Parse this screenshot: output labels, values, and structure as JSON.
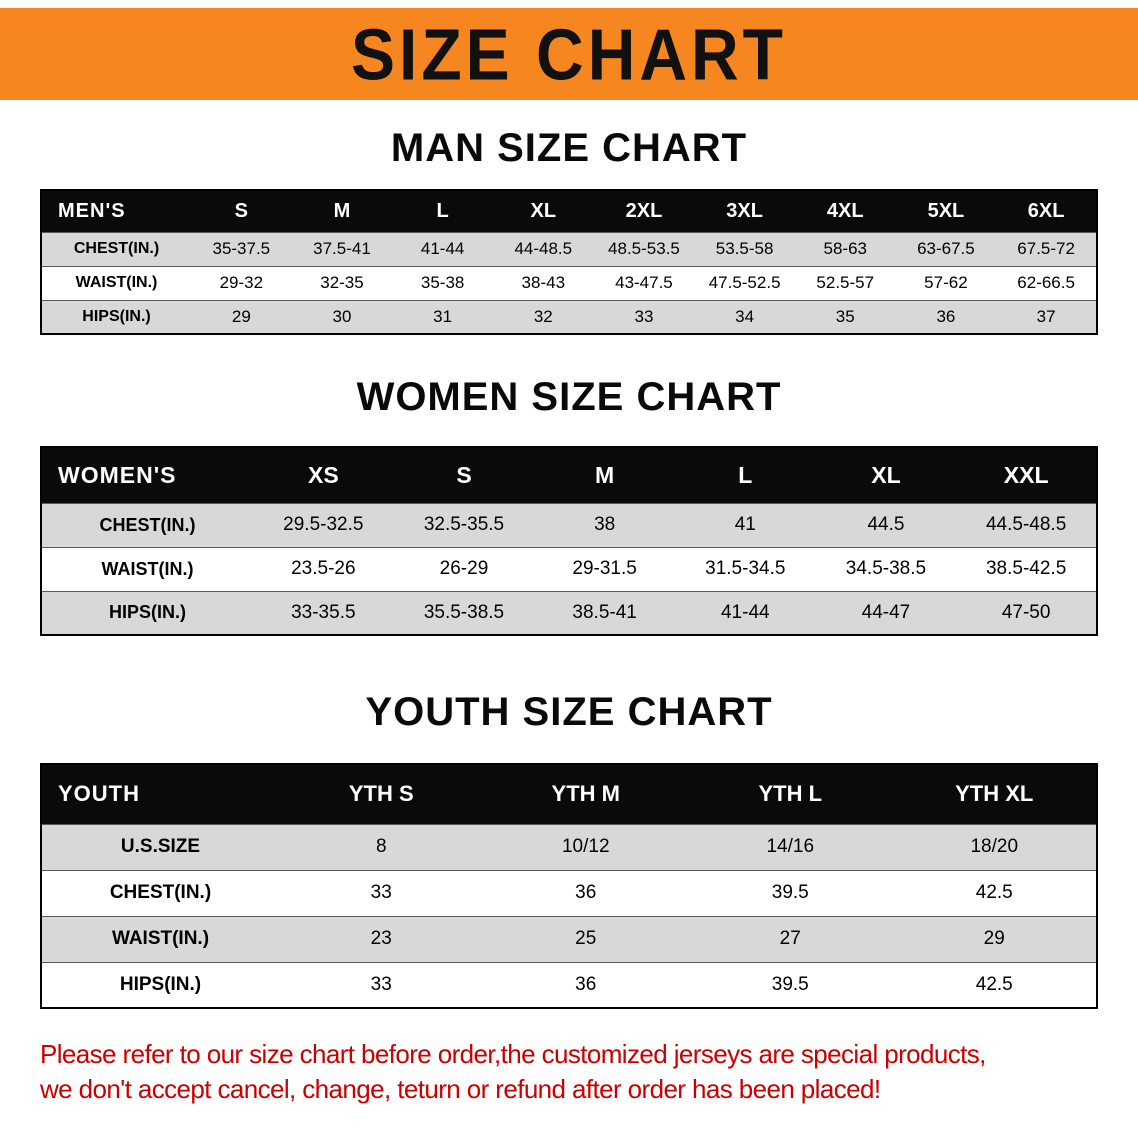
{
  "banner": {
    "title": "SIZE CHART",
    "background_color": "#f6861f",
    "text_color": "#111111"
  },
  "chart_data": [
    {
      "type": "table",
      "title": "MAN SIZE CHART",
      "corner_label": "MEN'S",
      "columns": [
        "S",
        "M",
        "L",
        "XL",
        "2XL",
        "3XL",
        "4XL",
        "5XL",
        "6XL"
      ],
      "rows": [
        {
          "label": "CHEST(IN.)",
          "values": [
            "35-37.5",
            "37.5-41",
            "41-44",
            "44-48.5",
            "48.5-53.5",
            "53.5-58",
            "58-63",
            "63-67.5",
            "67.5-72"
          ]
        },
        {
          "label": "WAIST(IN.)",
          "values": [
            "29-32",
            "32-35",
            "35-38",
            "38-43",
            "43-47.5",
            "47.5-52.5",
            "52.5-57",
            "57-62",
            "62-66.5"
          ]
        },
        {
          "label": "HIPS(IN.)",
          "values": [
            "29",
            "30",
            "31",
            "32",
            "33",
            "34",
            "35",
            "36",
            "37"
          ]
        }
      ]
    },
    {
      "type": "table",
      "title": "WOMEN SIZE CHART",
      "corner_label": "WOMEN'S",
      "columns": [
        "XS",
        "S",
        "M",
        "L",
        "XL",
        "XXL"
      ],
      "rows": [
        {
          "label": "CHEST(IN.)",
          "values": [
            "29.5-32.5",
            "32.5-35.5",
            "38",
            "41",
            "44.5",
            "44.5-48.5"
          ]
        },
        {
          "label": "WAIST(IN.)",
          "values": [
            "23.5-26",
            "26-29",
            "29-31.5",
            "31.5-34.5",
            "34.5-38.5",
            "38.5-42.5"
          ]
        },
        {
          "label": "HIPS(IN.)",
          "values": [
            "33-35.5",
            "35.5-38.5",
            "38.5-41",
            "41-44",
            "44-47",
            "47-50"
          ]
        }
      ]
    },
    {
      "type": "table",
      "title": "YOUTH SIZE CHART",
      "corner_label": "YOUTH",
      "columns": [
        "YTH S",
        "YTH M",
        "YTH L",
        "YTH XL"
      ],
      "rows": [
        {
          "label": "U.S.SIZE",
          "values": [
            "8",
            "10/12",
            "14/16",
            "18/20"
          ]
        },
        {
          "label": "CHEST(IN.)",
          "values": [
            "33",
            "36",
            "39.5",
            "42.5"
          ]
        },
        {
          "label": "WAIST(IN.)",
          "values": [
            "23",
            "25",
            "27",
            "29"
          ]
        },
        {
          "label": "HIPS(IN.)",
          "values": [
            "33",
            "36",
            "39.5",
            "42.5"
          ]
        }
      ]
    }
  ],
  "table_colors": {
    "header_background": "#0a0a0a",
    "header_text": "#ffffff",
    "shaded_row": "#d8d8d8",
    "plain_row": "#ffffff"
  },
  "disclaimer": {
    "color": "#cc0000",
    "lines": [
      "Please refer to our size chart before order,the customized jerseys are special products,",
      "we don't accept cancel, change, teturn or refund after order has been placed!"
    ]
  }
}
